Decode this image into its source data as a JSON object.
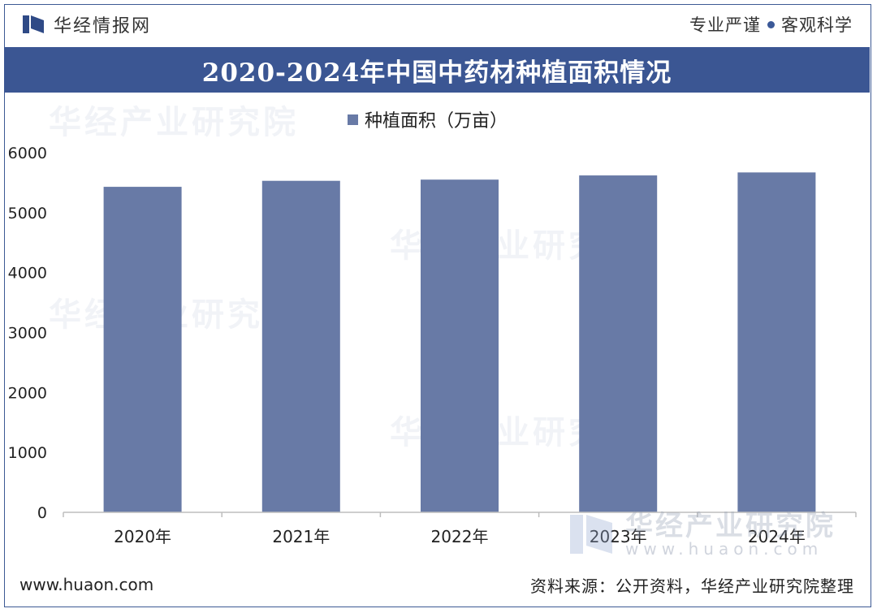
{
  "header": {
    "brand": "华经情报网",
    "motto_left": "专业严谨",
    "motto_right": "客观科学"
  },
  "watermark": {
    "cn": "华经产业研究院",
    "en": "www.huaon.com"
  },
  "footer": {
    "site": "www.huaon.com",
    "source": "资料来源：公开资料，华经产业研究院整理"
  },
  "colors": {
    "title_bg": "#3b5693",
    "bar": "#687aa6",
    "frame": "#3c5a94"
  },
  "chart_data": {
    "type": "bar",
    "title": "2020-2024年中国中药材种植面积情况",
    "categories": [
      "2020年",
      "2021年",
      "2022年",
      "2023年",
      "2024年"
    ],
    "series": [
      {
        "name": "种植面积（万亩）",
        "values": [
          5430,
          5530,
          5550,
          5620,
          5670
        ]
      }
    ],
    "ylim": [
      0,
      6000
    ],
    "yticks": [
      0,
      1000,
      2000,
      3000,
      4000,
      5000,
      6000
    ],
    "legend_position": "top-center",
    "grid": false
  }
}
